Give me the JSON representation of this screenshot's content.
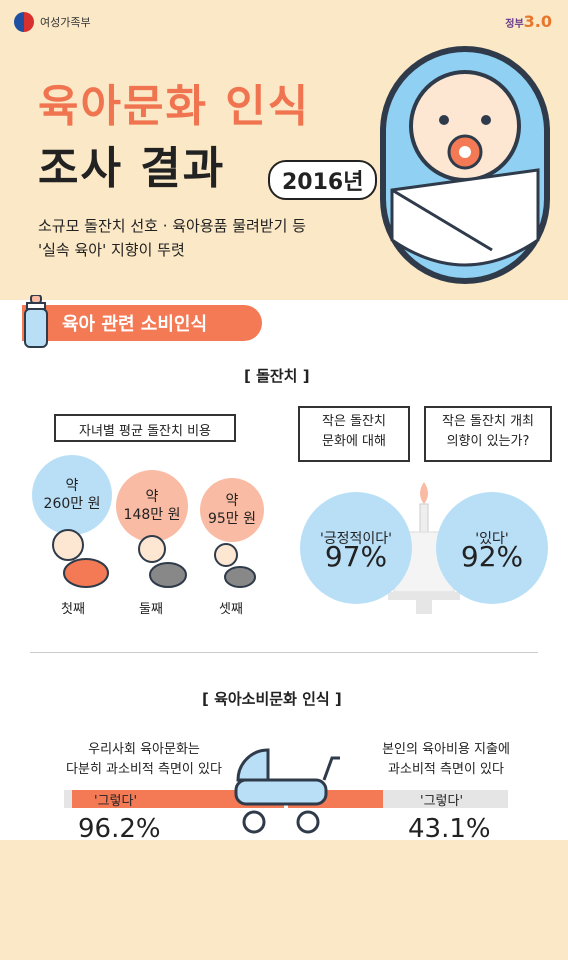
{
  "header": {
    "ministry": "여성가족부",
    "brand_text": "정부",
    "brand_num": "3.0"
  },
  "title": {
    "line1": "육아문화 인식",
    "line2": "조사 결과",
    "year": "2016년"
  },
  "subtitle": {
    "line1": "소규모 돌잔치 선호 · 육아용품 물려받기 등",
    "line2": "'실속 육아' 지향이 뚜렷"
  },
  "section": {
    "label": "육아 관련 소비인식"
  },
  "dol": {
    "heading": "[ 돌잔치 ]",
    "avg_label": "자녀별 평균 돌잔치 비용",
    "children": [
      {
        "approx": "약",
        "amount": "260만 원",
        "label": "첫째"
      },
      {
        "approx": "약",
        "amount": "148만 원",
        "label": "둘째"
      },
      {
        "approx": "약",
        "amount": "95만 원",
        "label": "셋째"
      }
    ],
    "q1": {
      "line1": "작은 돌잔치",
      "line2": "문화에 대해",
      "answer": "'긍정적이다'",
      "pct": "97%"
    },
    "q2": {
      "line1": "작은 돌잔치 개최",
      "line2": "의향이 있는가?",
      "answer": "'있다'",
      "pct": "92%"
    }
  },
  "consume": {
    "heading": "[ 육아소비문화 인식 ]",
    "left": {
      "line1": "우리사회 육아문화는",
      "line2": "다분히 과소비적 측면이 있다",
      "answer": "'그렇다'",
      "pct": "96.2%",
      "value": 96.2
    },
    "right": {
      "line1": "본인의 육아비용 지출에",
      "line2": "과소비적 측면이 있다",
      "answer": "'그렇다'",
      "pct": "43.1%",
      "value": 43.1
    }
  }
}
